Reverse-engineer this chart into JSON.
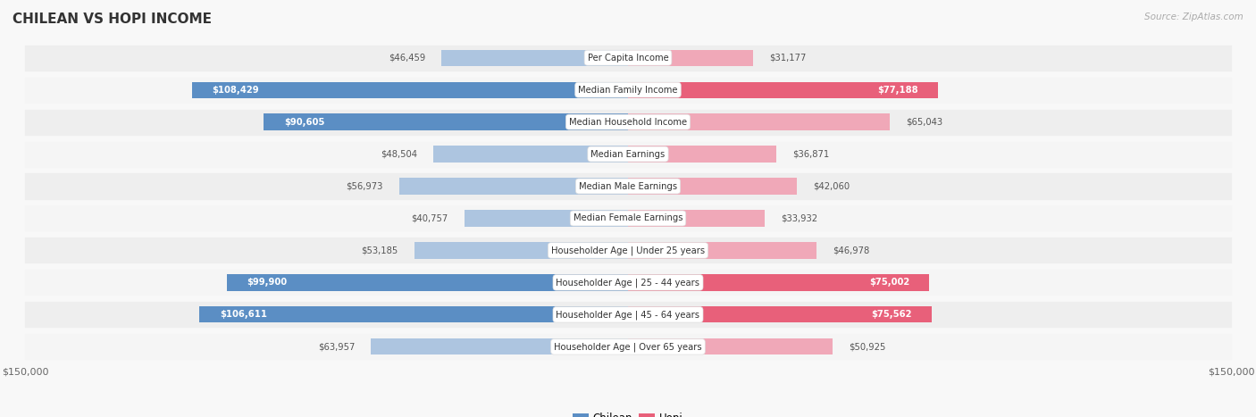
{
  "title": "CHILEAN VS HOPI INCOME",
  "source": "Source: ZipAtlas.com",
  "categories": [
    "Per Capita Income",
    "Median Family Income",
    "Median Household Income",
    "Median Earnings",
    "Median Male Earnings",
    "Median Female Earnings",
    "Householder Age | Under 25 years",
    "Householder Age | 25 - 44 years",
    "Householder Age | 45 - 64 years",
    "Householder Age | Over 65 years"
  ],
  "chilean_values": [
    46459,
    108429,
    90605,
    48504,
    56973,
    40757,
    53185,
    99900,
    106611,
    63957
  ],
  "hopi_values": [
    31177,
    77188,
    65043,
    36871,
    42060,
    33932,
    46978,
    75002,
    75562,
    50925
  ],
  "max_value": 150000,
  "chilean_color_dark": "#5b8ec4",
  "chilean_color_light": "#adc5e0",
  "hopi_color_dark": "#e8607a",
  "hopi_color_light": "#f0a8b8",
  "row_colors": [
    "#eeeeee",
    "#f5f5f5"
  ],
  "title_color": "#333333",
  "source_color": "#aaaaaa",
  "label_text_color": "#555555",
  "value_color_inside": "#ffffff",
  "value_color_outside": "#555555",
  "dark_threshold": 75000
}
